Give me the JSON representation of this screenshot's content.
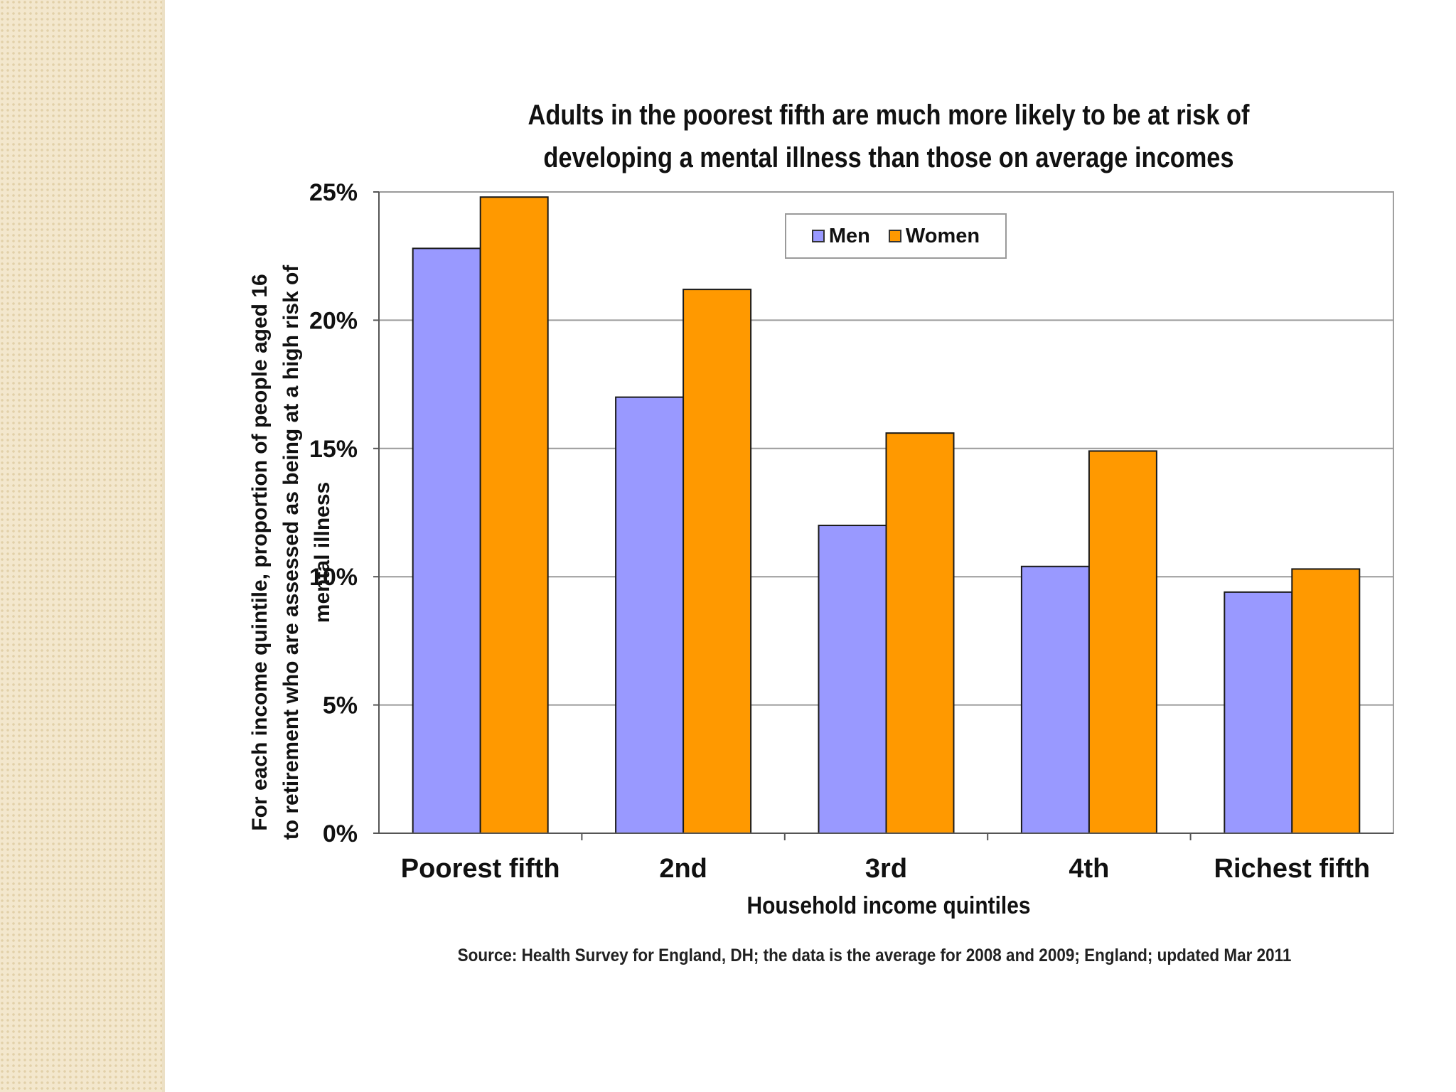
{
  "chart_data": {
    "type": "bar",
    "title": "Adults in the poorest fifth are much more likely to be at risk of developing a mental illness than those on average incomes",
    "xlabel": "Household income quintiles",
    "ylabel": "For each income quintile, proportion of people aged 16 to retirement who are assessed as being at a high risk of mental illness",
    "categories": [
      "Poorest fifth",
      "2nd",
      "3rd",
      "4th",
      "Richest fifth"
    ],
    "series": [
      {
        "name": "Men",
        "color": "#9999ff",
        "values": [
          22.8,
          17.0,
          12.0,
          10.4,
          9.4
        ]
      },
      {
        "name": "Women",
        "color": "#ff9900",
        "values": [
          24.8,
          21.2,
          15.6,
          14.9,
          10.3
        ]
      }
    ],
    "ylim": [
      0,
      25
    ],
    "yticks": [
      "0%",
      "5%",
      "10%",
      "15%",
      "20%",
      "25%"
    ],
    "grid": true,
    "legend_position": "top-center"
  },
  "source_note": "Source: Health Survey for England, DH; the data is the average for 2008 and 2009; England; updated Mar 2011"
}
